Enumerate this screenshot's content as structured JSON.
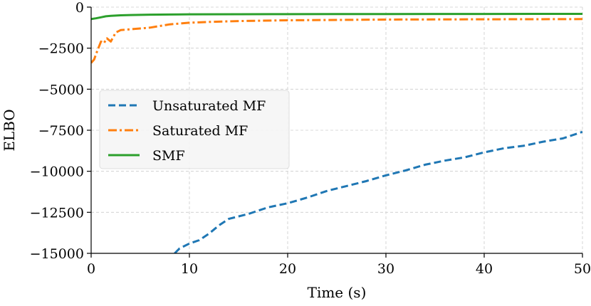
{
  "chart_data": {
    "type": "line",
    "title": "",
    "xlabel": "Time (s)",
    "ylabel": "ELBO",
    "xlim": [
      0,
      50
    ],
    "ylim": [
      -15000,
      0
    ],
    "xticks": [
      0,
      10,
      20,
      30,
      40,
      50
    ],
    "xtick_labels": [
      "0",
      "10",
      "20",
      "30",
      "40",
      "50"
    ],
    "yticks": [
      0,
      -2500,
      -5000,
      -7500,
      -10000,
      -12500,
      -15000
    ],
    "ytick_labels": [
      "0",
      "−2500",
      "−5000",
      "−7500",
      "−10000",
      "−12500",
      "−15000"
    ],
    "grid": true,
    "legend_position": "center-left",
    "series": [
      {
        "name": "Unsaturated MF",
        "color": "#1f77b4",
        "linestyle": "dashed",
        "x": [
          8.5,
          9,
          10,
          11,
          12,
          13,
          14,
          16,
          18,
          20,
          22,
          24,
          26,
          28,
          30,
          32,
          34,
          36,
          38,
          40,
          42,
          44,
          46,
          48,
          50
        ],
        "y": [
          -15000,
          -14700,
          -14400,
          -14200,
          -13800,
          -13300,
          -12900,
          -12600,
          -12200,
          -11950,
          -11600,
          -11200,
          -10900,
          -10600,
          -10250,
          -9950,
          -9600,
          -9350,
          -9150,
          -8850,
          -8600,
          -8450,
          -8200,
          -8000,
          -7600
        ]
      },
      {
        "name": "Saturated MF",
        "color": "#ff7f0e",
        "linestyle": "dashdot",
        "x": [
          0,
          0.3,
          0.6,
          1,
          1.3,
          1.6,
          2,
          2.5,
          3,
          4,
          5,
          6,
          7,
          8,
          9,
          10,
          12,
          15,
          20,
          25,
          30,
          35,
          40,
          45,
          50
        ],
        "y": [
          -3400,
          -3200,
          -2700,
          -2100,
          -2200,
          -1900,
          -2100,
          -1550,
          -1400,
          -1350,
          -1300,
          -1250,
          -1150,
          -1050,
          -1000,
          -950,
          -900,
          -850,
          -800,
          -780,
          -760,
          -750,
          -740,
          -735,
          -730
        ]
      },
      {
        "name": "SMF",
        "color": "#2ca02c",
        "linestyle": "solid",
        "x": [
          0,
          0.5,
          1,
          1.5,
          2,
          3,
          4,
          6,
          8,
          10,
          15,
          20,
          25,
          30,
          35,
          40,
          45,
          50
        ],
        "y": [
          -730,
          -680,
          -620,
          -560,
          -530,
          -500,
          -480,
          -460,
          -450,
          -440,
          -435,
          -430,
          -425,
          -420,
          -418,
          -415,
          -412,
          -410
        ]
      }
    ]
  }
}
